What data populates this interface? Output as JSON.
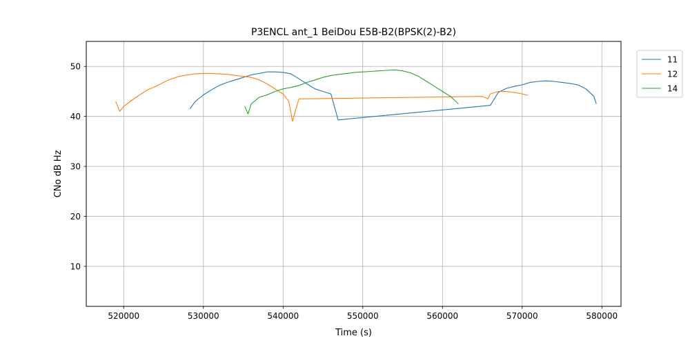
{
  "chart_data": {
    "type": "line",
    "title": "P3ENCL ant_1 BeiDou E5B-B2(BPSK(2)-B2)",
    "xlabel": "Time (s)",
    "ylabel": "CNo dB Hz",
    "xlim": [
      515300,
      582400
    ],
    "ylim": [
      2,
      55
    ],
    "xticks": [
      520000,
      530000,
      540000,
      550000,
      560000,
      570000,
      580000
    ],
    "xtick_labels": [
      "520000",
      "530000",
      "540000",
      "550000",
      "560000",
      "570000",
      "580000"
    ],
    "yticks": [
      10,
      20,
      30,
      40,
      50
    ],
    "ytick_labels": [
      "10",
      "20",
      "30",
      "40",
      "50"
    ],
    "grid": true,
    "legend_placement": "outside-top-right",
    "series": [
      {
        "name": "11",
        "color": "#1f77b4",
        "x": [
          528300,
          529000,
          530000,
          531000,
          532000,
          533000,
          534000,
          535000,
          536000,
          537000,
          538000,
          539000,
          540000,
          541000,
          542000,
          543000,
          544000,
          545000,
          546000,
          546900,
          566000,
          566500,
          567000,
          568000,
          569000,
          570000,
          571000,
          572000,
          573000,
          574000,
          575000,
          576000,
          577000,
          578000,
          579000,
          579300
        ],
        "y": [
          41.5,
          43.0,
          44.3,
          45.3,
          46.2,
          46.8,
          47.3,
          47.8,
          48.3,
          48.6,
          48.9,
          48.9,
          48.8,
          48.5,
          47.5,
          46.5,
          45.5,
          45.0,
          44.5,
          39.3,
          42.2,
          43.5,
          44.8,
          45.6,
          46.0,
          46.3,
          46.8,
          47.0,
          47.1,
          47.0,
          46.8,
          46.6,
          46.3,
          45.5,
          44.0,
          42.5
        ]
      },
      {
        "name": "12",
        "color": "#ff7f0e",
        "x": [
          519000,
          519500,
          520000,
          521000,
          522000,
          523000,
          524000,
          525000,
          526000,
          527000,
          528000,
          529000,
          530000,
          531000,
          532000,
          533000,
          534000,
          535000,
          536000,
          537000,
          538000,
          539000,
          540000,
          540700,
          541200,
          541600,
          542000,
          565000,
          565700,
          566000,
          567000,
          568000,
          569000,
          570000,
          570700
        ],
        "y": [
          43.0,
          41.0,
          42.0,
          43.2,
          44.3,
          45.3,
          46.0,
          46.8,
          47.5,
          48.0,
          48.3,
          48.5,
          48.6,
          48.6,
          48.5,
          48.4,
          48.2,
          48.0,
          47.8,
          47.3,
          46.5,
          45.5,
          44.5,
          43.0,
          39.0,
          41.5,
          43.5,
          44.0,
          43.5,
          44.5,
          45.0,
          45.0,
          44.8,
          44.5,
          44.2
        ]
      },
      {
        "name": "14",
        "color": "#2ca02c",
        "x": [
          535200,
          535600,
          536000,
          537000,
          538000,
          539000,
          540000,
          541000,
          542000,
          543000,
          544000,
          545000,
          546000,
          547000,
          548000,
          549000,
          550000,
          551000,
          552000,
          553000,
          554000,
          555000,
          556000,
          557000,
          558000,
          559000,
          560000,
          561000,
          562000
        ],
        "y": [
          42.0,
          40.5,
          42.5,
          43.8,
          44.3,
          45.0,
          45.5,
          45.8,
          46.2,
          46.8,
          47.3,
          47.8,
          48.2,
          48.4,
          48.6,
          48.8,
          48.9,
          49.0,
          49.1,
          49.2,
          49.3,
          49.1,
          48.7,
          48.0,
          47.0,
          46.0,
          45.0,
          44.0,
          42.5
        ]
      }
    ]
  }
}
